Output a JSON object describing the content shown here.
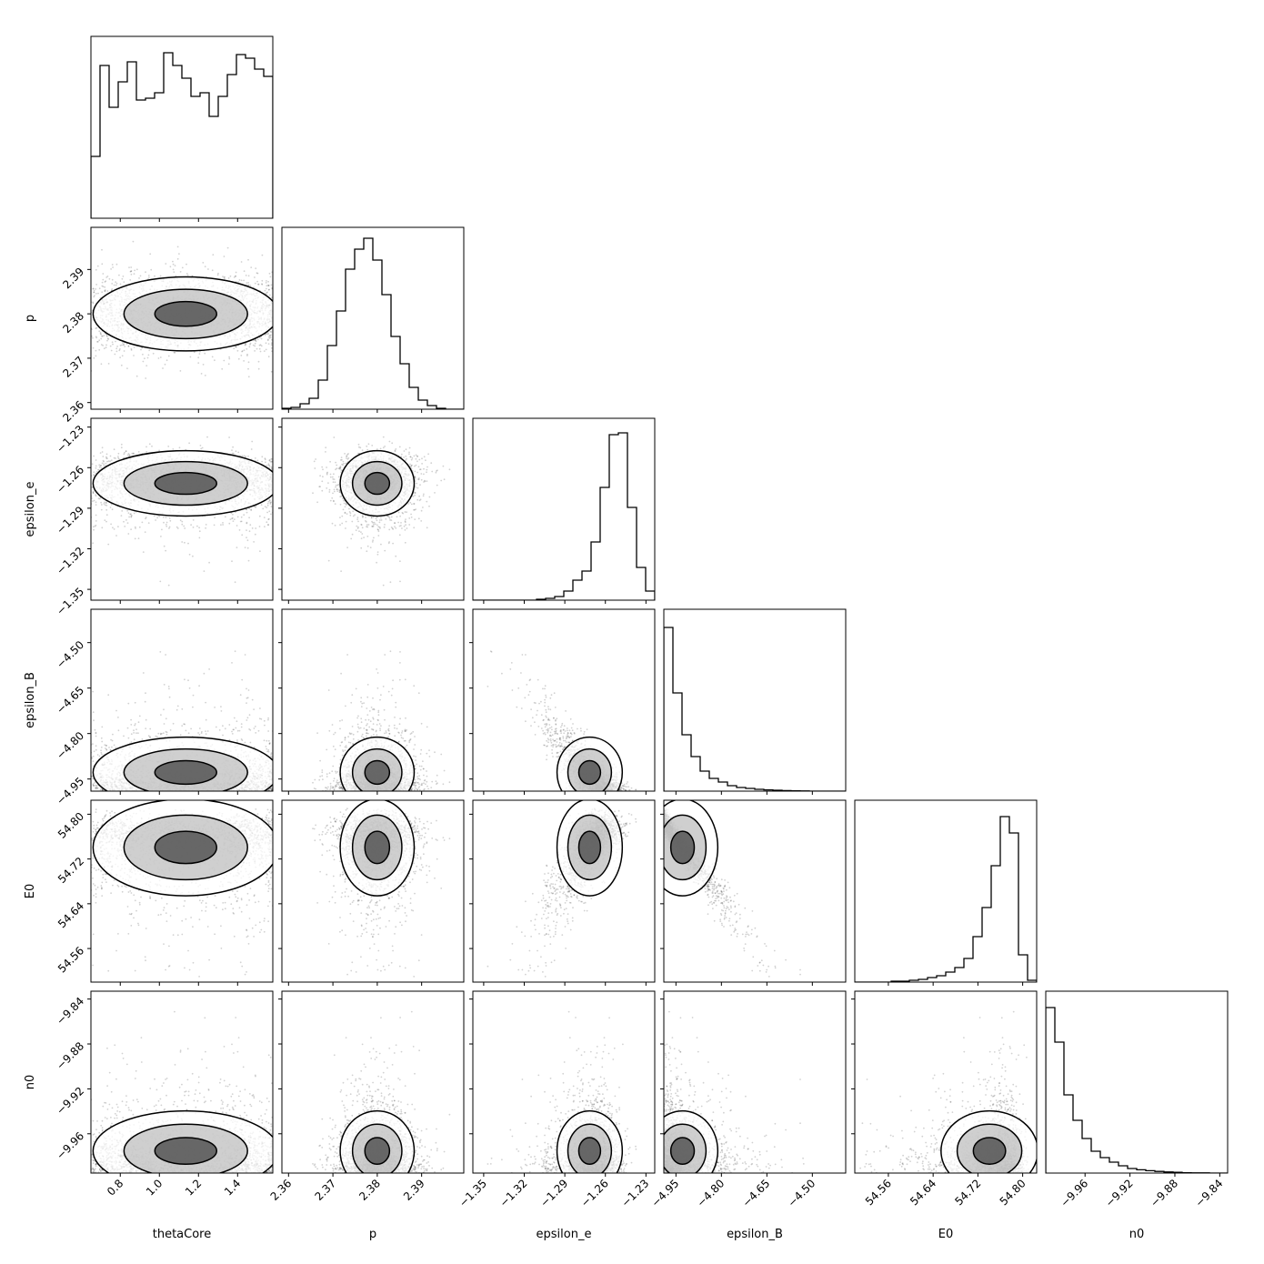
{
  "chart_data": {
    "type": "corner",
    "parameters": [
      "thetaCore",
      "p",
      "epsilon_e",
      "epsilon_B",
      "E0",
      "n0"
    ],
    "axes": {
      "thetaCore": {
        "range": [
          0.65,
          1.58
        ],
        "ticks": [
          0.8,
          1.0,
          1.2,
          1.4
        ],
        "tick_labels": [
          "0.8",
          "1.0",
          "1.2",
          "1.4"
        ]
      },
      "p": {
        "range": [
          2.3585,
          2.3995
        ],
        "ticks": [
          2.36,
          2.37,
          2.38,
          2.39
        ],
        "tick_labels": [
          "2.36",
          "2.37",
          "2.38",
          "2.39"
        ]
      },
      "epsilon_e": {
        "range": [
          -1.358,
          -1.2235
        ],
        "ticks": [
          -1.35,
          -1.32,
          -1.29,
          -1.26,
          -1.23
        ],
        "tick_labels": [
          "−1.35",
          "−1.32",
          "−1.29",
          "−1.26",
          "−1.23"
        ]
      },
      "epsilon_B": {
        "range": [
          -4.99,
          -4.39
        ],
        "ticks": [
          -4.95,
          -4.8,
          -4.65,
          -4.5
        ],
        "tick_labels": [
          "−4.95",
          "−4.80",
          "−4.65",
          "−4.50"
        ]
      },
      "E0": {
        "range": [
          54.5,
          54.825
        ],
        "ticks": [
          54.56,
          54.64,
          54.72,
          54.8
        ],
        "tick_labels": [
          "54.56",
          "54.64",
          "54.72",
          "54.80"
        ]
      },
      "n0": {
        "range": [
          -9.995,
          -9.833
        ],
        "ticks": [
          -9.96,
          -9.92,
          -9.88,
          -9.84
        ],
        "tick_labels": [
          "−9.96",
          "−9.92",
          "−9.88",
          "−9.84"
        ]
      }
    },
    "y_tick_labels": {
      "p": [
        "2.36",
        "2.37",
        "2.38",
        "2.39"
      ],
      "epsilon_e": [
        "−1.35",
        "−1.32",
        "−1.29",
        "−1.26",
        "−1.23"
      ],
      "epsilon_B": [
        "−4.95",
        "−4.80",
        "−4.65",
        "−4.50"
      ],
      "E0": [
        "54.56",
        "54.64",
        "54.72",
        "54.80"
      ],
      "n0": [
        "−9.96",
        "−9.92",
        "−9.88",
        "−9.84"
      ]
    },
    "histograms": {
      "thetaCore": [
        0.34,
        0.84,
        0.61,
        0.75,
        0.86,
        0.65,
        0.66,
        0.69,
        0.91,
        0.84,
        0.77,
        0.67,
        0.69,
        0.56,
        0.67,
        0.79,
        0.9,
        0.88,
        0.82,
        0.78
      ],
      "p": [
        0.005,
        0.01,
        0.03,
        0.06,
        0.16,
        0.35,
        0.54,
        0.77,
        0.88,
        0.94,
        0.82,
        0.63,
        0.4,
        0.25,
        0.12,
        0.05,
        0.02,
        0.005,
        0.0,
        0.0
      ],
      "epsilon_e": [
        0.0,
        0.0,
        0.0,
        0.0,
        0.0,
        0.0,
        0.0,
        0.005,
        0.01,
        0.02,
        0.05,
        0.11,
        0.16,
        0.32,
        0.62,
        0.91,
        0.92,
        0.51,
        0.18,
        0.05
      ],
      "epsilon_B": [
        0.9,
        0.54,
        0.31,
        0.19,
        0.11,
        0.07,
        0.05,
        0.03,
        0.02,
        0.015,
        0.01,
        0.007,
        0.005,
        0.003,
        0.002,
        0.001,
        0.0,
        0.0,
        0.0,
        0.0
      ],
      "E0": [
        0.0,
        0.0,
        0.0,
        0.0,
        0.005,
        0.005,
        0.01,
        0.015,
        0.025,
        0.035,
        0.055,
        0.08,
        0.13,
        0.25,
        0.41,
        0.64,
        0.91,
        0.82,
        0.15,
        0.01
      ],
      "n0": [
        0.91,
        0.72,
        0.43,
        0.29,
        0.19,
        0.12,
        0.085,
        0.06,
        0.04,
        0.025,
        0.018,
        0.013,
        0.009,
        0.006,
        0.004,
        0.002,
        0.001,
        0.001,
        0.0,
        0.0
      ]
    }
  }
}
